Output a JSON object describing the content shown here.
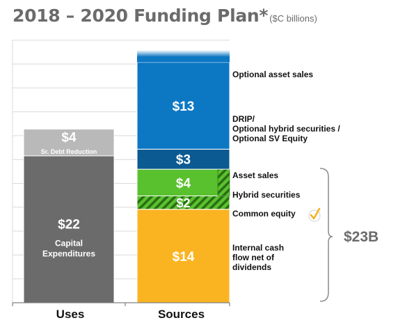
{
  "title": "2018 – 2020 Funding Plan*",
  "unit_note": "($C billions)",
  "total_label": "$23B",
  "colors": {
    "uses_capex": "#6b6b6b",
    "uses_debt": "#b9b9b9",
    "internal_cash": "#fbb421",
    "common_equity": "#5ac12e",
    "hybrid": "#5ac12e",
    "asset_sales": "#0b5a92",
    "drip": "#0c77c3",
    "optional_asset_sales": "#0c77c3",
    "grid": "#d9d9d9",
    "bracket": "#8c8c8c",
    "check": "#f5b321"
  },
  "chart_data": {
    "type": "bar",
    "stacked": true,
    "categories": [
      "Uses",
      "Sources"
    ],
    "ylim": [
      0,
      39.4
    ],
    "grid": true,
    "uses": [
      {
        "key": "capex",
        "value": 22,
        "label": "$22",
        "sublabel": "Capital Expenditures"
      },
      {
        "key": "debt",
        "value": 4,
        "label": "$4",
        "sublabel": "Sr. Debt Reduction"
      }
    ],
    "sources": [
      {
        "key": "internal_cash",
        "value": 14,
        "label": "$14",
        "legend": "Internal cash flow net of dividends",
        "pattern": "solid"
      },
      {
        "key": "common_equity",
        "value": 2,
        "label": "$2",
        "legend": "Common equity",
        "pattern": "hatched"
      },
      {
        "key": "hybrid",
        "value": 4,
        "label": "$4",
        "legend": "Hybrid securities",
        "pattern": "solid-with-hatched-edge"
      },
      {
        "key": "asset_sales",
        "value": 3,
        "label": "$3",
        "legend": "Asset sales",
        "pattern": "solid"
      },
      {
        "key": "drip",
        "value": 13,
        "label": "$13",
        "legend": "DRIP/ Optional hybrid securities / Optional SV Equity",
        "pattern": "solid"
      },
      {
        "key": "optional_asset_sales",
        "legend": "Optional asset sales",
        "pattern": "gradient-top"
      }
    ],
    "bracket_total": "$23B",
    "checkmark_on": "Common equity"
  }
}
